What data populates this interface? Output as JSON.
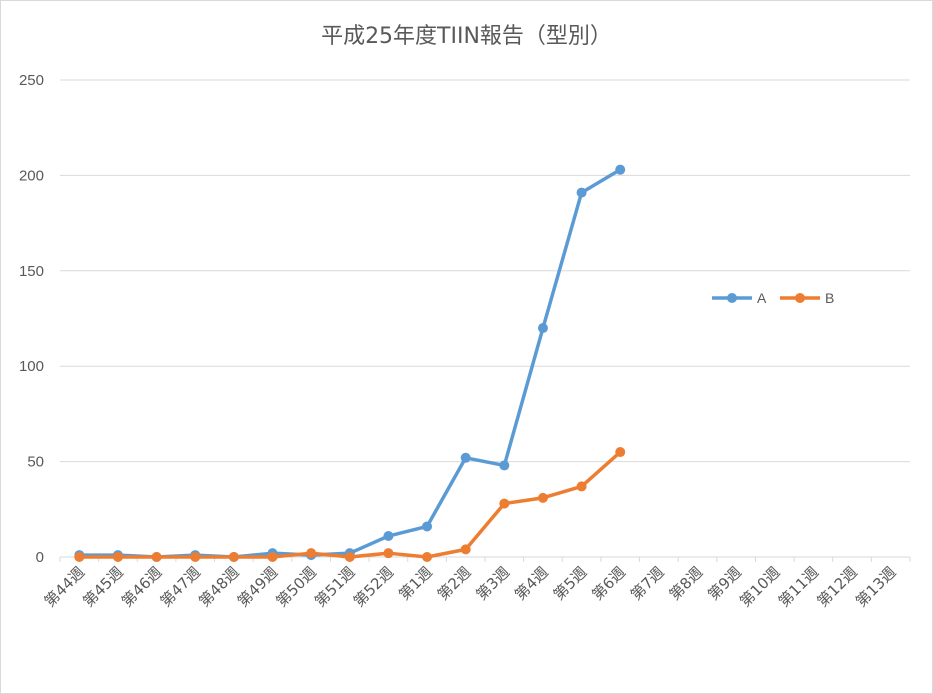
{
  "chart_data": {
    "type": "line",
    "title": "平成25年度TIIN報告（型別）",
    "xlabel": "",
    "ylabel": "",
    "ylim": [
      0,
      250
    ],
    "yticks": [
      0,
      50,
      100,
      150,
      200,
      250
    ],
    "grid": true,
    "legend_position": "right",
    "categories": [
      "第44週",
      "第45週",
      "第46週",
      "第47週",
      "第48週",
      "第49週",
      "第50週",
      "第51週",
      "第52週",
      "第1週",
      "第2週",
      "第3週",
      "第4週",
      "第5週",
      "第6週",
      "第7週",
      "第8週",
      "第9週",
      "第10週",
      "第11週",
      "第12週",
      "第13週"
    ],
    "series": [
      {
        "name": "A",
        "color": "#5b9bd5",
        "values": [
          1,
          1,
          0,
          1,
          0,
          2,
          1,
          2,
          11,
          16,
          52,
          48,
          120,
          191,
          203,
          null,
          null,
          null,
          null,
          null,
          null,
          null
        ]
      },
      {
        "name": "B",
        "color": "#ed7d31",
        "values": [
          0,
          0,
          0,
          0,
          0,
          0,
          2,
          0,
          2,
          0,
          4,
          28,
          31,
          37,
          55,
          null,
          null,
          null,
          null,
          null,
          null,
          null
        ]
      }
    ]
  }
}
